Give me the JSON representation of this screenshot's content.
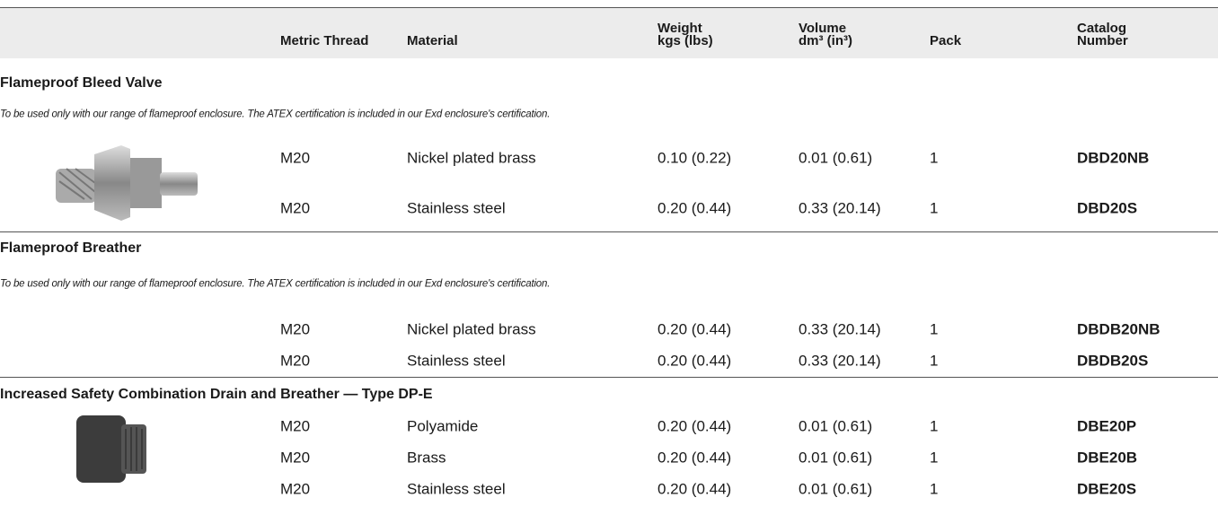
{
  "header": {
    "columns": [
      [
        "Metric Thread"
      ],
      [
        "Material"
      ],
      [
        "Weight",
        "kgs (lbs)"
      ],
      [
        "Volume",
        "dm³ (in³)"
      ],
      [
        "Pack"
      ],
      [
        "Catalog",
        "Number"
      ]
    ]
  },
  "sections": [
    {
      "title": "Flameproof Bleed Valve",
      "note": "To be used only with our range of flameproof enclosure. The ATEX certification is included in our Exd enclosure's certification.",
      "rows": [
        [
          "M20",
          "Nickel plated brass",
          "0.10 (0.22)",
          "0.01 (0.61)",
          "1",
          "DBD20NB"
        ],
        [
          "M20",
          "Stainless steel",
          "0.20 (0.44)",
          "0.33 (20.14)",
          "1",
          "DBD20S"
        ]
      ]
    },
    {
      "title": "Flameproof Breather",
      "note": "To be used only with our range of flameproof enclosure. The ATEX certification is included in our Exd enclosure's certification.",
      "rows": [
        [
          "M20",
          "Nickel plated brass",
          "0.20 (0.44)",
          "0.33 (20.14)",
          "1",
          "DBDB20NB"
        ],
        [
          "M20",
          "Stainless steel",
          "0.20 (0.44)",
          "0.33 (20.14)",
          "1",
          "DBDB20S"
        ]
      ]
    },
    {
      "title": "Increased Safety Combination Drain and Breather — Type DP-E",
      "rows": [
        [
          "M20",
          "Polyamide",
          "0.20 (0.44)",
          "0.01 (0.61)",
          "1",
          "DBE20P"
        ],
        [
          "M20",
          "Brass",
          "0.20 (0.44)",
          "0.01 (0.61)",
          "1",
          "DBE20B"
        ],
        [
          "M20",
          "Stainless steel",
          "0.20 (0.44)",
          "0.01 (0.61)",
          "1",
          "DBE20S"
        ]
      ]
    }
  ]
}
